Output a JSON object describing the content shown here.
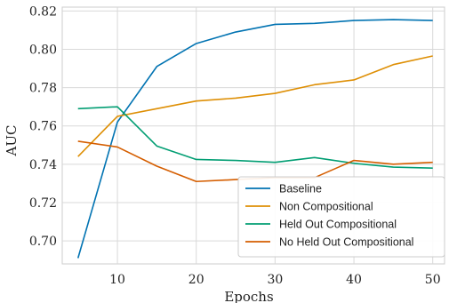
{
  "chart_data": {
    "type": "line",
    "title": "",
    "xlabel": "Epochs",
    "ylabel": "AUC",
    "xlim": [
      3,
      51.5
    ],
    "ylim": [
      0.688,
      0.822
    ],
    "x_ticks": [
      "10",
      "20",
      "30",
      "40",
      "50"
    ],
    "y_ticks": [
      "0.70",
      "0.72",
      "0.74",
      "0.76",
      "0.78",
      "0.80",
      "0.82"
    ],
    "grid": true,
    "legend_position": "lower-right",
    "x": [
      5,
      10,
      15,
      20,
      25,
      30,
      35,
      40,
      45,
      50
    ],
    "series": [
      {
        "name": "Baseline",
        "color": "#0173b2",
        "values": [
          0.691,
          0.762,
          0.791,
          0.803,
          0.809,
          0.813,
          0.8135,
          0.815,
          0.8155,
          0.815
        ]
      },
      {
        "name": "Non Compositional",
        "color": "#de8f05",
        "values": [
          0.744,
          0.765,
          0.769,
          0.773,
          0.7745,
          0.777,
          0.7815,
          0.784,
          0.792,
          0.7965
        ]
      },
      {
        "name": "Held Out Compositional",
        "color": "#029e73",
        "values": [
          0.769,
          0.77,
          0.7495,
          0.7425,
          0.742,
          0.741,
          0.7435,
          0.7405,
          0.7385,
          0.738
        ]
      },
      {
        "name": "No Held Out Compositional",
        "color": "#d55e00",
        "values": [
          0.752,
          0.749,
          0.739,
          0.731,
          0.732,
          0.733,
          0.733,
          0.742,
          0.74,
          0.741
        ]
      }
    ]
  }
}
